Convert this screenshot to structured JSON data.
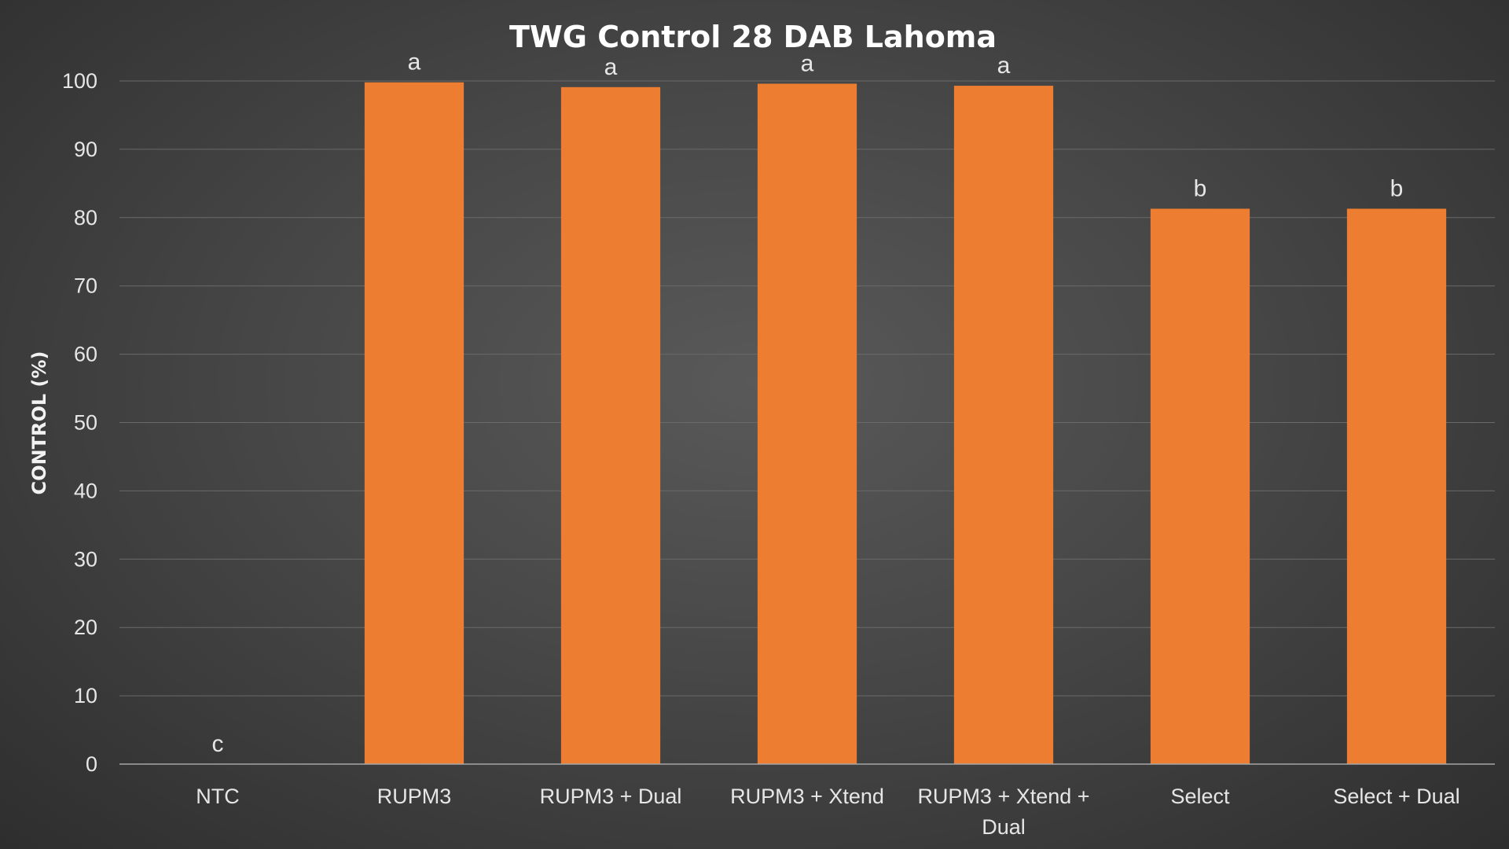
{
  "chart_data": {
    "type": "bar",
    "title": "TWG Control 28 DAB Lahoma",
    "xlabel": "",
    "ylabel": "CONTROL (%)",
    "ylim": [
      0,
      100
    ],
    "yticks": [
      0,
      10,
      20,
      30,
      40,
      50,
      60,
      70,
      80,
      90,
      100
    ],
    "grid": true,
    "legend": "none",
    "bar_color": "#ED7D31",
    "categories": [
      [
        "NTC"
      ],
      [
        "RUPM3"
      ],
      [
        "RUPM3 + Dual"
      ],
      [
        "RUPM3 + Xtend"
      ],
      [
        "RUPM3 + Xtend +",
        "Dual"
      ],
      [
        "Select"
      ],
      [
        "Select + Dual"
      ]
    ],
    "values": [
      0,
      99.8,
      99.1,
      99.6,
      99.3,
      81.3,
      81.3
    ],
    "data_labels": [
      "c",
      "a",
      "a",
      "a",
      "a",
      "b",
      "b"
    ]
  }
}
